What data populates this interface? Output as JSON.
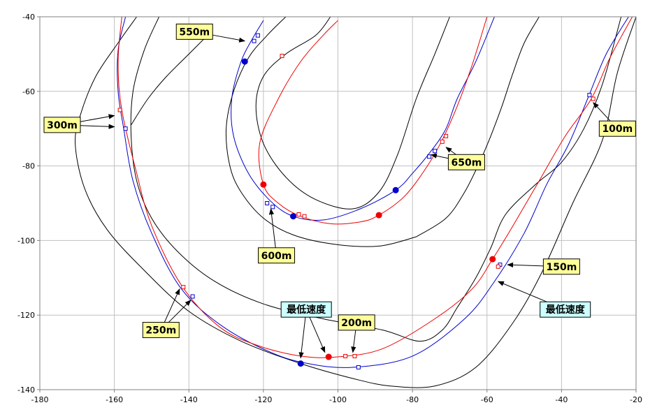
{
  "chart_data": {
    "type": "line",
    "title": "",
    "xlabel": "",
    "ylabel": "",
    "xlim": [
      -180,
      -20
    ],
    "ylim": [
      -140,
      -40
    ],
    "x_ticks": [
      -180,
      -160,
      -140,
      -120,
      -100,
      -80,
      -60,
      -40,
      -20
    ],
    "y_ticks": [
      -40,
      -60,
      -80,
      -100,
      -120,
      -140
    ],
    "grid": true,
    "legend": "none",
    "colors": {
      "blue": "#0000cc",
      "red": "#ee0000",
      "boundary": "#000000",
      "distance_label": "#ffff99",
      "min_speed_label": "#ccffff"
    },
    "boundaries": [
      {
        "points": [
          [
            -154,
            -40
          ],
          [
            -159,
            -47
          ],
          [
            -165,
            -56
          ],
          [
            -169,
            -66
          ],
          [
            -170.5,
            -74
          ],
          [
            -168,
            -86
          ],
          [
            -162,
            -97
          ],
          [
            -152,
            -108
          ],
          [
            -140,
            -119
          ],
          [
            -126,
            -127
          ],
          [
            -110,
            -133
          ],
          [
            -96,
            -137
          ],
          [
            -86,
            -139
          ],
          [
            -74,
            -139
          ],
          [
            -63,
            -134
          ],
          [
            -53,
            -122
          ],
          [
            -45,
            -108
          ],
          [
            -37,
            -90
          ],
          [
            -29,
            -73
          ],
          [
            -25,
            -55
          ],
          [
            -20,
            -40
          ]
        ]
      },
      {
        "points": [
          [
            -148,
            -40
          ],
          [
            -152,
            -49
          ],
          [
            -155,
            -60
          ],
          [
            -155.5,
            -72
          ],
          [
            -154,
            -84
          ],
          [
            -150,
            -94
          ],
          [
            -143,
            -103
          ],
          [
            -133,
            -111
          ],
          [
            -120,
            -117
          ],
          [
            -104,
            -121
          ],
          [
            -88,
            -124
          ],
          [
            -78,
            -127
          ],
          [
            -72,
            -124
          ],
          [
            -68,
            -118
          ],
          [
            -63,
            -110
          ],
          [
            -59,
            -102
          ],
          [
            -55,
            -93
          ],
          [
            -47,
            -85
          ],
          [
            -40,
            -79
          ],
          [
            -34,
            -70
          ],
          [
            -29,
            -58
          ],
          [
            -24,
            -40
          ]
        ]
      },
      {
        "points": [
          [
            -135,
            -45
          ],
          [
            -140,
            -50
          ],
          [
            -146,
            -56
          ],
          [
            -151,
            -62
          ],
          [
            -155.5,
            -69
          ]
        ]
      },
      {
        "points": [
          [
            -79,
            -99
          ],
          [
            -89,
            -101.5
          ],
          [
            -101,
            -101
          ],
          [
            -112,
            -98.5
          ],
          [
            -120,
            -94
          ],
          [
            -126,
            -87
          ],
          [
            -129,
            -80
          ],
          [
            -130,
            -70
          ],
          [
            -128,
            -60
          ],
          [
            -124,
            -51
          ],
          [
            -119,
            -45
          ],
          [
            -114,
            -40
          ]
        ]
      },
      {
        "points": [
          [
            -79,
            -99
          ],
          [
            -71,
            -94
          ],
          [
            -66,
            -87
          ],
          [
            -62,
            -79
          ],
          [
            -59,
            -72
          ],
          [
            -56,
            -64
          ],
          [
            -53,
            -55
          ],
          [
            -50,
            -47
          ],
          [
            -46,
            -40
          ]
        ]
      },
      {
        "points": [
          [
            -70,
            -40
          ],
          [
            -74,
            -50
          ],
          [
            -79,
            -62
          ],
          [
            -84,
            -77
          ],
          [
            -89,
            -87
          ],
          [
            -96,
            -91.5
          ],
          [
            -106,
            -89
          ],
          [
            -114,
            -83
          ],
          [
            -120,
            -74
          ],
          [
            -122,
            -64
          ],
          [
            -120,
            -56
          ],
          [
            -114,
            -50
          ],
          [
            -106,
            -45
          ],
          [
            -102,
            -40
          ]
        ]
      }
    ],
    "series": [
      {
        "color": "#0000cc",
        "points": [
          [
            -157,
            -40
          ],
          [
            -159,
            -49
          ],
          [
            -159,
            -60
          ],
          [
            -157.5,
            -70
          ],
          [
            -155,
            -84
          ],
          [
            -150,
            -98
          ],
          [
            -142,
            -113
          ],
          [
            -131,
            -123
          ],
          [
            -118,
            -130
          ],
          [
            -108,
            -133
          ],
          [
            -96,
            -134
          ],
          [
            -80,
            -131
          ],
          [
            -66,
            -121
          ],
          [
            -58,
            -111
          ],
          [
            -50,
            -98
          ],
          [
            -44,
            -85
          ],
          [
            -38,
            -74
          ],
          [
            -33,
            -62
          ],
          [
            -28,
            -50
          ],
          [
            -22,
            -40
          ]
        ],
        "markers_square": [
          [
            -157,
            -70
          ],
          [
            -139,
            -115
          ],
          [
            -94.5,
            -134
          ],
          [
            -56.5,
            -106.5
          ],
          [
            -32.5,
            -61
          ]
        ],
        "markers_dot": [
          [
            -110,
            -133
          ]
        ]
      },
      {
        "color": "#ee0000",
        "points": [
          [
            -158,
            -40
          ],
          [
            -159,
            -52
          ],
          [
            -158,
            -65
          ],
          [
            -154,
            -82
          ],
          [
            -150,
            -96
          ],
          [
            -142,
            -112
          ],
          [
            -132,
            -123
          ],
          [
            -122,
            -128
          ],
          [
            -110,
            -131
          ],
          [
            -100,
            -131.2
          ],
          [
            -88,
            -129
          ],
          [
            -74,
            -121
          ],
          [
            -64,
            -113
          ],
          [
            -58.5,
            -105
          ],
          [
            -53,
            -96
          ],
          [
            -46,
            -84
          ],
          [
            -39,
            -72
          ],
          [
            -32,
            -62
          ],
          [
            -27,
            -51
          ],
          [
            -21,
            -40
          ]
        ],
        "markers_square": [
          [
            -158.5,
            -65
          ],
          [
            -141.5,
            -112.5
          ],
          [
            -98,
            -131
          ],
          [
            -95.5,
            -131
          ],
          [
            -57,
            -107
          ],
          [
            -31.5,
            -62
          ]
        ],
        "markers_dot": [
          [
            -102.5,
            -131.2
          ],
          [
            -58.5,
            -105
          ]
        ]
      },
      {
        "color": "#0000cc",
        "points": [
          [
            -120,
            -41
          ],
          [
            -123,
            -46
          ],
          [
            -126,
            -52
          ],
          [
            -128.5,
            -62
          ],
          [
            -128,
            -72
          ],
          [
            -124,
            -82
          ],
          [
            -118,
            -89.5
          ],
          [
            -112,
            -93.5
          ],
          [
            -104,
            -94.5
          ],
          [
            -94,
            -91.5
          ],
          [
            -84.5,
            -86.5
          ],
          [
            -80,
            -82
          ],
          [
            -75,
            -76
          ],
          [
            -71,
            -70
          ],
          [
            -68,
            -62
          ],
          [
            -63,
            -52
          ],
          [
            -58,
            -40
          ]
        ],
        "markers_square": [
          [
            -121.5,
            -45
          ],
          [
            -122.5,
            -46.5
          ],
          [
            -119,
            -90
          ],
          [
            -117.5,
            -91
          ],
          [
            -74,
            -76
          ],
          [
            -75.5,
            -77.5
          ]
        ],
        "markers_dot": [
          [
            -125,
            -52
          ],
          [
            -112,
            -93.5
          ],
          [
            -84.5,
            -86.5
          ]
        ]
      },
      {
        "color": "#ee0000",
        "points": [
          [
            -100,
            -41
          ],
          [
            -104,
            -45
          ],
          [
            -110,
            -52
          ],
          [
            -116,
            -62
          ],
          [
            -121,
            -74
          ],
          [
            -120,
            -85
          ],
          [
            -116,
            -90
          ],
          [
            -110,
            -93.5
          ],
          [
            -102,
            -95.5
          ],
          [
            -94,
            -95
          ],
          [
            -89,
            -93.2
          ],
          [
            -82,
            -88
          ],
          [
            -76,
            -80
          ],
          [
            -72,
            -73
          ],
          [
            -68,
            -64
          ],
          [
            -64,
            -53
          ],
          [
            -60,
            -40
          ]
        ],
        "markers_square": [
          [
            -115,
            -50.5
          ],
          [
            -110.5,
            -93
          ],
          [
            -109,
            -93.5
          ],
          [
            -71,
            -72
          ],
          [
            -72,
            -73.5
          ]
        ],
        "markers_dot": [
          [
            -120,
            -85
          ],
          [
            -89,
            -93.2
          ]
        ]
      }
    ],
    "annotations": [
      {
        "text": "550m",
        "color": "#ffff99",
        "box_at": [
          -138.5,
          -44
        ],
        "arrows": [
          [
            -125,
            -46.5
          ]
        ]
      },
      {
        "text": "300m",
        "color": "#ffff99",
        "box_at": [
          -174,
          -69
        ],
        "arrows": [
          [
            -160,
            -66.5
          ],
          [
            -160,
            -69.5
          ]
        ]
      },
      {
        "text": "100m",
        "color": "#ffff99",
        "box_at": [
          -25,
          -70
        ],
        "arrows": [
          [
            -31.5,
            -63
          ]
        ]
      },
      {
        "text": "650m",
        "color": "#ffff99",
        "box_at": [
          -65.5,
          -79
        ],
        "arrows": [
          [
            -71,
            -75
          ],
          [
            -75,
            -77
          ]
        ]
      },
      {
        "text": "600m",
        "color": "#ffff99",
        "box_at": [
          -116.5,
          -104
        ],
        "arrows": [
          [
            -118,
            -91.5
          ]
        ]
      },
      {
        "text": "150m",
        "color": "#ffff99",
        "box_at": [
          -40,
          -107
        ],
        "arrows": [
          [
            -54.5,
            -106.5
          ]
        ]
      },
      {
        "text": "最低速度",
        "color": "#ccffff",
        "box_at": [
          -39,
          -118.5
        ],
        "arrows": [
          [
            -57,
            -111
          ]
        ]
      },
      {
        "text": "最低速度",
        "color": "#ccffff",
        "box_at": [
          -108.5,
          -118.5
        ],
        "arrows": [
          [
            -110,
            -131.5
          ],
          [
            -103.5,
            -130
          ]
        ]
      },
      {
        "text": "200m",
        "color": "#ffff99",
        "box_at": [
          -95,
          -122
        ],
        "arrows": [
          [
            -96,
            -130
          ]
        ]
      },
      {
        "text": "250m",
        "color": "#ffff99",
        "box_at": [
          -147.5,
          -124
        ],
        "arrows": [
          [
            -142.5,
            -113
          ],
          [
            -139.5,
            -116
          ]
        ]
      }
    ]
  }
}
